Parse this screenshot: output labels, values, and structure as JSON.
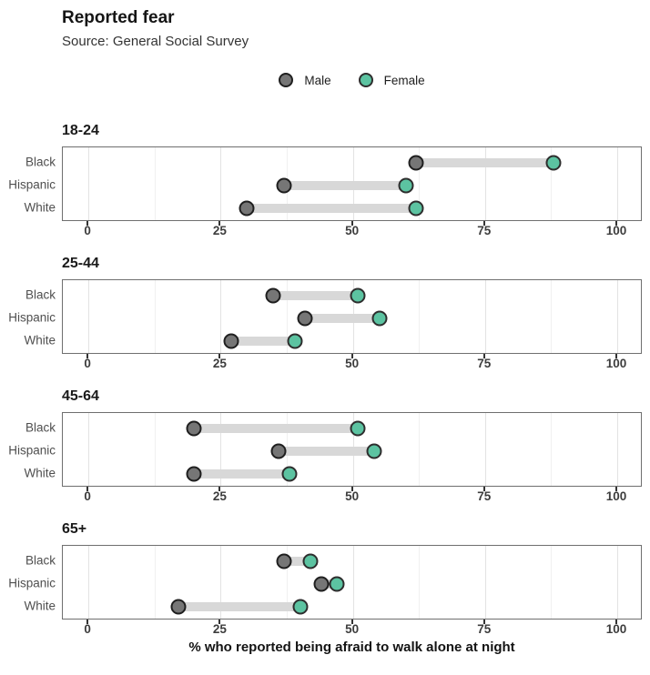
{
  "header": {
    "title": "Reported fear",
    "subtitle": "Source: General Social Survey"
  },
  "legend": {
    "items": [
      {
        "label": "Male",
        "color": "#767676",
        "border": "#1f1f1f"
      },
      {
        "label": "Female",
        "color": "#5cc3a1",
        "border": "#2e2e2e"
      }
    ]
  },
  "axis": {
    "ticks": [
      0,
      25,
      50,
      75,
      100
    ],
    "minor_gridlines": [
      12.5,
      37.5,
      62.5,
      87.5
    ],
    "label": "% who reported being afraid to walk alone at night"
  },
  "colors": {
    "male_fill": "#767676",
    "male_stroke": "#1f1f1f",
    "female_fill": "#5cc3a1",
    "female_stroke": "#2e2e2e",
    "bar": "#d8d8d8",
    "panel_border": "#6f6f6f",
    "grid_major": "#e3e3e3",
    "grid_minor": "#f0f0f0"
  },
  "chart_data": {
    "type": "scatter",
    "subtype": "dumbbell",
    "title": "Reported fear",
    "subtitle": "Source: General Social Survey",
    "xlabel": "% who reported being afraid to walk alone at night",
    "ylabel": "",
    "xlim": [
      0,
      100
    ],
    "x_ticks": [
      0,
      25,
      50,
      75,
      100
    ],
    "grid": true,
    "legend_position": "top-center",
    "facets": [
      {
        "title": "18-24",
        "categories": [
          "Black",
          "Hispanic",
          "White"
        ],
        "series": [
          {
            "name": "Male",
            "values": [
              62,
              37,
              30
            ]
          },
          {
            "name": "Female",
            "values": [
              88,
              60,
              62
            ]
          }
        ]
      },
      {
        "title": "25-44",
        "categories": [
          "Black",
          "Hispanic",
          "White"
        ],
        "series": [
          {
            "name": "Male",
            "values": [
              35,
              41,
              27
            ]
          },
          {
            "name": "Female",
            "values": [
              51,
              55,
              39
            ]
          }
        ]
      },
      {
        "title": "45-64",
        "categories": [
          "Black",
          "Hispanic",
          "White"
        ],
        "series": [
          {
            "name": "Male",
            "values": [
              20,
              36,
              20
            ]
          },
          {
            "name": "Female",
            "values": [
              51,
              54,
              38
            ]
          }
        ]
      },
      {
        "title": "65+",
        "categories": [
          "Black",
          "Hispanic",
          "White"
        ],
        "series": [
          {
            "name": "Male",
            "values": [
              37,
              44,
              17
            ]
          },
          {
            "name": "Female",
            "values": [
              42,
              47,
              40
            ]
          }
        ]
      }
    ]
  }
}
